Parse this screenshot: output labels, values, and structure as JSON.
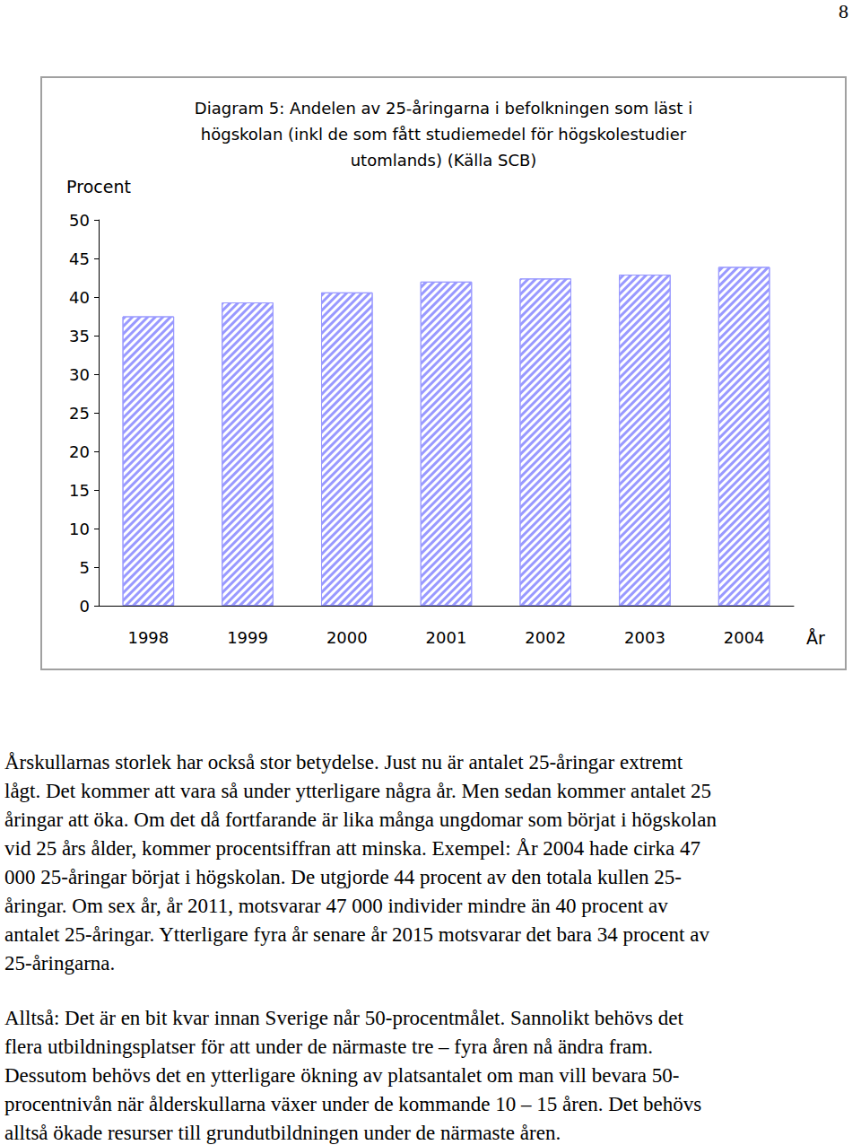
{
  "page": {
    "number": "8"
  },
  "chart_data": {
    "type": "bar",
    "title": "Diagram 5: Andelen av 25-åringarna i befolkningen som läst i\nhögskolan (inkl de som fått studiemedel för högskolestudier\nutomlands) (Källa SCB)",
    "y_label": "Procent",
    "x_label": "År",
    "categories": [
      "1998",
      "1999",
      "2000",
      "2001",
      "2002",
      "2003",
      "2004"
    ],
    "values": [
      37.5,
      39.3,
      40.6,
      42.0,
      42.4,
      42.9,
      43.9
    ],
    "color": "#9999ff",
    "ylim": [
      0,
      50
    ],
    "yticks": [
      0,
      5,
      10,
      15,
      20,
      25,
      30,
      35,
      40,
      45,
      50
    ],
    "grid": false
  },
  "text": {
    "paragraphs": [
      [
        "Årskullarnas storlek har också stor betydelse. Just nu är antalet 25-åringar extremt",
        "lågt. Det kommer att vara så under ytterligare några år. Men sedan kommer antalet 25",
        "åringar att öka. Om det då fortfarande är lika många ungdomar som börjat i högskolan",
        "vid 25 års ålder, kommer procentsiffran att minska. Exempel: År 2004 hade cirka 47",
        "000 25-åringar börjat i högskolan. De utgjorde 44 procent av den totala kullen 25-",
        "åringar. Om sex år, år 2011, motsvarar 47 000 individer mindre än 40 procent av",
        "antalet 25-åringar. Ytterligare fyra år senare år 2015 motsvarar det bara 34 procent av",
        "25-åringarna."
      ],
      [
        "Alltså: Det är en bit kvar innan Sverige når 50-procentmålet. Sannolikt behövs det",
        "flera utbildningsplatser för att under de närmaste tre – fyra åren nå ändra fram.",
        "Dessutom behövs det en ytterligare ökning av platsantalet om man vill bevara 50-",
        "procentnivån när ålderskullarna växer under de kommande 10 – 15 åren. Det behövs",
        "alltså ökade resurser till grundutbildningen under de närmaste åren."
      ]
    ]
  }
}
